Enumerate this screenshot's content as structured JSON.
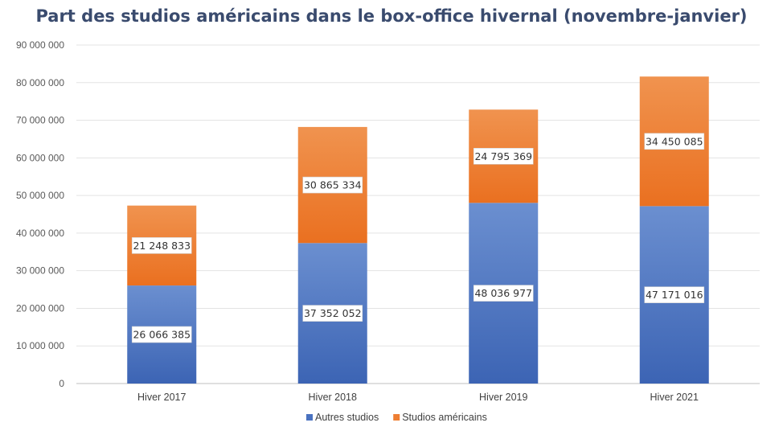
{
  "chart_data": {
    "type": "bar",
    "stacked": true,
    "title": "Part des studios américains dans le box-office hivernal (novembre-janvier)",
    "xlabel": "",
    "ylabel": "",
    "categories": [
      "Hiver 2017",
      "Hiver 2018",
      "Hiver 2019",
      "Hiver 2021"
    ],
    "series": [
      {
        "name": "Autres studios",
        "values": [
          26066385,
          37352052,
          48036977,
          47171016
        ],
        "labels": [
          "26 066 385",
          "37 352 052",
          "48 036 977",
          "47 171 016"
        ],
        "color": "#4a72c0"
      },
      {
        "name": "Studios américains",
        "values": [
          21248833,
          30865334,
          24795369,
          34450085
        ],
        "labels": [
          "21 248 833",
          "30 865 334",
          "24 795 369",
          "34 450 085"
        ],
        "color": "#ee7e32"
      }
    ],
    "ylim": [
      0,
      90000000
    ],
    "yticks": [
      0,
      10000000,
      20000000,
      30000000,
      40000000,
      50000000,
      60000000,
      70000000,
      80000000,
      90000000
    ],
    "ytick_labels": [
      "0",
      "10 000 000",
      "20 000 000",
      "30 000 000",
      "40 000 000",
      "50 000 000",
      "60 000 000",
      "70 000 000",
      "80 000 000",
      "90 000 000"
    ],
    "grid": true,
    "legend_position": "bottom"
  }
}
